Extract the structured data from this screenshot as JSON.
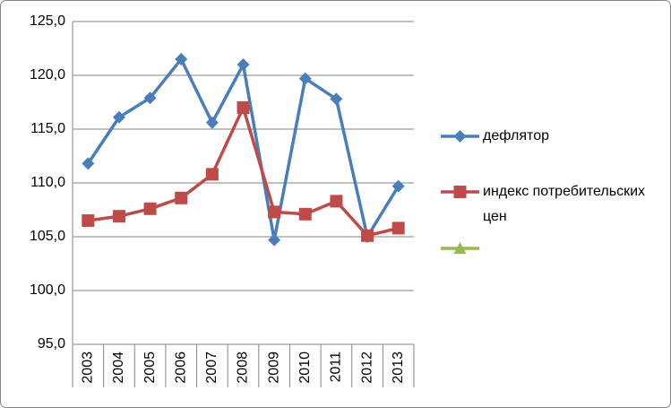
{
  "chart_data": {
    "type": "line",
    "categories": [
      "2003",
      "2004",
      "2005",
      "2006",
      "2007",
      "2008",
      "2009",
      "2010",
      "2011",
      "2012",
      "2013"
    ],
    "series": [
      {
        "name": "дефлятор",
        "color": "#4a7ebb",
        "marker": "diamond",
        "values": [
          111.8,
          116.1,
          117.9,
          121.5,
          115.6,
          121.0,
          104.7,
          119.7,
          117.8,
          105.0,
          109.7
        ]
      },
      {
        "name": "индекс потребительских цен",
        "color": "#be4b48",
        "marker": "square",
        "values": [
          106.5,
          106.9,
          107.6,
          108.6,
          110.8,
          117.0,
          107.3,
          107.1,
          108.3,
          105.1,
          105.8
        ]
      },
      {
        "name": null,
        "color": "#98b954",
        "marker": "triangle",
        "values": [
          null,
          null,
          null,
          null,
          null,
          null,
          null,
          null,
          null,
          null,
          null
        ]
      }
    ],
    "ylim": [
      95,
      125
    ],
    "yticks": [
      {
        "value": 95,
        "label": "95,0"
      },
      {
        "value": 100,
        "label": "100,0"
      },
      {
        "value": 105,
        "label": "105,0"
      },
      {
        "value": 110,
        "label": "110,0"
      },
      {
        "value": 115,
        "label": "115,0"
      },
      {
        "value": 120,
        "label": "120,0"
      },
      {
        "value": 125,
        "label": "125,0"
      }
    ],
    "grid": true,
    "legend": "right"
  }
}
